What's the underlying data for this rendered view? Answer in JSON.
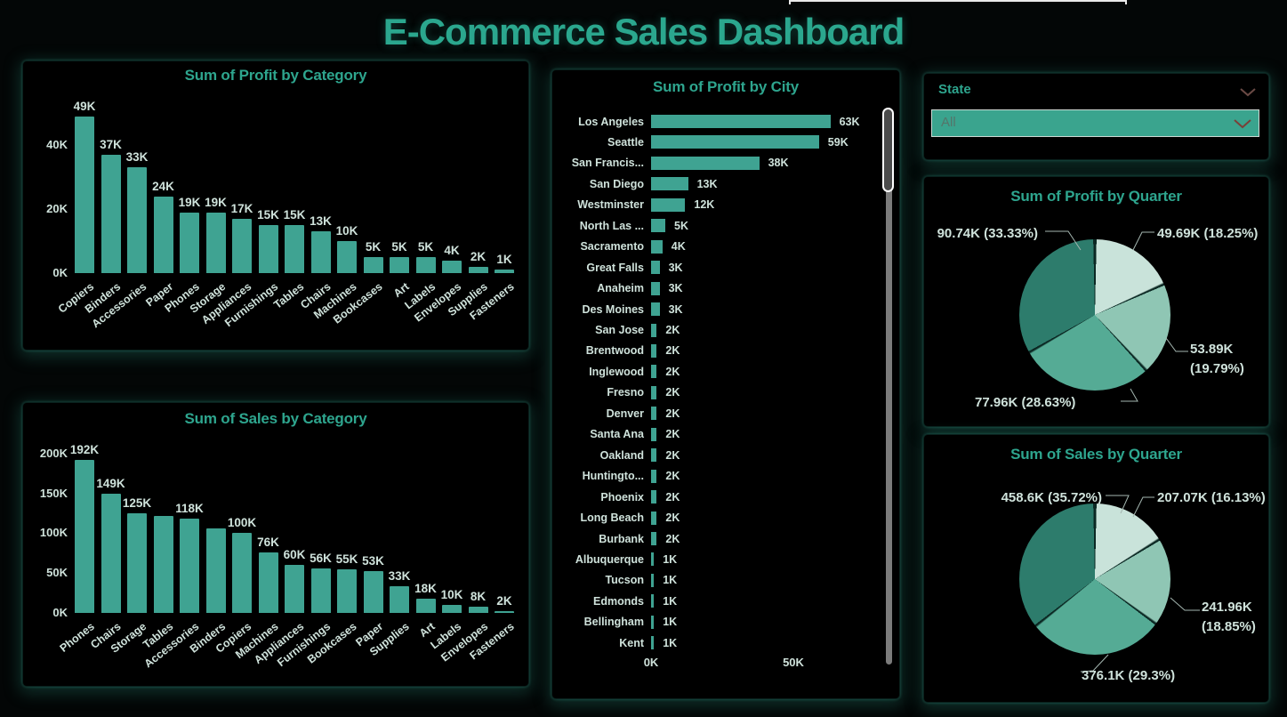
{
  "title": "E-Commerce Sales Dashboard",
  "slicer": {
    "label": "State",
    "value": "All"
  },
  "colors": {
    "accent": "#2EA58E",
    "bar": "#3FA392",
    "label_text": "#CFE2DB",
    "pie_dark": "#2D7C6C",
    "pie_medium": "#55AB95",
    "pie_light": "#8FC6B4",
    "pie_lightest": "#C9E3DA",
    "slice_separator": "#0B2823",
    "slicer_fill": "#3AA48E"
  },
  "chart_data": [
    {
      "id": "profit_by_category",
      "type": "bar",
      "title": "Sum of Profit by Category",
      "unit": "K",
      "ylabel": "Sum of Profit",
      "yticks": [
        {
          "label": "0K",
          "value": 0
        },
        {
          "label": "20K",
          "value": 20
        },
        {
          "label": "40K",
          "value": 40
        }
      ],
      "categories": [
        "Copiers",
        "Binders",
        "Accessories",
        "Paper",
        "Phones",
        "Storage",
        "Appliances",
        "Furnishings",
        "Tables",
        "Chairs",
        "Machines",
        "Bookcases",
        "Art",
        "Labels",
        "Envelopes",
        "Supplies",
        "Fasteners"
      ],
      "values": [
        49,
        37,
        33,
        24,
        19,
        19,
        17,
        15,
        15,
        13,
        10,
        5,
        5,
        5,
        4,
        2,
        1
      ],
      "labels": [
        "49K",
        "37K",
        "33K",
        "24K",
        "19K",
        "19K",
        "17K",
        "15K",
        "15K",
        "13K",
        "10K",
        "5K",
        "5K",
        "5K",
        "4K",
        "2K",
        "1K"
      ]
    },
    {
      "id": "sales_by_category",
      "type": "bar",
      "title": "Sum of Sales by Category",
      "unit": "K",
      "ylabel": "Sum of Sales",
      "yticks": [
        {
          "label": "0K",
          "value": 0
        },
        {
          "label": "50K",
          "value": 50
        },
        {
          "label": "100K",
          "value": 100
        },
        {
          "label": "150K",
          "value": 150
        },
        {
          "label": "200K",
          "value": 200
        }
      ],
      "categories": [
        "Phones",
        "Chairs",
        "Storage",
        "Tables",
        "Accessories",
        "Binders",
        "Copiers",
        "Machines",
        "Appliances",
        "Furnishings",
        "Bookcases",
        "Paper",
        "Supplies",
        "Art",
        "Labels",
        "Envelopes",
        "Fasteners"
      ],
      "values": [
        192,
        149,
        125,
        122,
        118,
        106,
        100,
        76,
        60,
        56,
        55,
        53,
        33,
        18,
        10,
        8,
        2
      ],
      "labels": [
        "192K",
        "149K",
        "125K",
        null,
        "118K",
        null,
        "100K",
        "76K",
        "60K",
        "56K",
        "55K",
        "53K",
        "33K",
        "18K",
        "10K",
        "8K",
        "2K"
      ]
    },
    {
      "id": "profit_by_city",
      "type": "barh",
      "title": "Sum of Profit by City",
      "unit": "K",
      "xticks": [
        {
          "label": "0K",
          "value": 0
        },
        {
          "label": "50K",
          "value": 50
        }
      ],
      "rows": [
        {
          "city": "Los Angeles",
          "value": 63,
          "label": "63K"
        },
        {
          "city": "Seattle",
          "value": 59,
          "label": "59K"
        },
        {
          "city": "San Francis...",
          "value": 38,
          "label": "38K"
        },
        {
          "city": "San Diego",
          "value": 13,
          "label": "13K"
        },
        {
          "city": "Westminster",
          "value": 12,
          "label": "12K"
        },
        {
          "city": "North Las ...",
          "value": 5,
          "label": "5K"
        },
        {
          "city": "Sacramento",
          "value": 4,
          "label": "4K"
        },
        {
          "city": "Great Falls",
          "value": 3,
          "label": "3K"
        },
        {
          "city": "Anaheim",
          "value": 3,
          "label": "3K"
        },
        {
          "city": "Des Moines",
          "value": 3,
          "label": "3K"
        },
        {
          "city": "San Jose",
          "value": 2,
          "label": "2K"
        },
        {
          "city": "Brentwood",
          "value": 2,
          "label": "2K"
        },
        {
          "city": "Inglewood",
          "value": 2,
          "label": "2K"
        },
        {
          "city": "Fresno",
          "value": 2,
          "label": "2K"
        },
        {
          "city": "Denver",
          "value": 2,
          "label": "2K"
        },
        {
          "city": "Santa Ana",
          "value": 2,
          "label": "2K"
        },
        {
          "city": "Oakland",
          "value": 2,
          "label": "2K"
        },
        {
          "city": "Huntingto...",
          "value": 2,
          "label": "2K"
        },
        {
          "city": "Phoenix",
          "value": 2,
          "label": "2K"
        },
        {
          "city": "Long Beach",
          "value": 2,
          "label": "2K"
        },
        {
          "city": "Burbank",
          "value": 2,
          "label": "2K"
        },
        {
          "city": "Albuquerque",
          "value": 1,
          "label": "1K"
        },
        {
          "city": "Tucson",
          "value": 1,
          "label": "1K"
        },
        {
          "city": "Edmonds",
          "value": 1,
          "label": "1K"
        },
        {
          "city": "Bellingham",
          "value": 1,
          "label": "1K"
        },
        {
          "city": "Kent",
          "value": 1,
          "label": "1K"
        }
      ]
    },
    {
      "id": "profit_by_quarter",
      "type": "pie",
      "title": "Sum of Profit by Quarter",
      "slices": [
        {
          "value": 49.69,
          "pct": 18.25,
          "color": "#C9E3DA",
          "pos": "top-right",
          "label_lines": [
            "49.69K (18.25%)"
          ]
        },
        {
          "value": 53.89,
          "pct": 19.79,
          "color": "#8FC6B4",
          "pos": "right",
          "label_lines": [
            "53.89K",
            "(19.79%)"
          ]
        },
        {
          "value": 77.96,
          "pct": 28.63,
          "color": "#55AB95",
          "pos": "bottom",
          "label_lines": [
            "77.96K (28.63%)"
          ]
        },
        {
          "value": 90.74,
          "pct": 33.33,
          "color": "#2D7C6C",
          "pos": "top-left",
          "label_lines": [
            "90.74K (33.33%)"
          ]
        }
      ]
    },
    {
      "id": "sales_by_quarter",
      "type": "pie",
      "title": "Sum of Sales by Quarter",
      "slices": [
        {
          "value": 207.07,
          "pct": 16.13,
          "color": "#C9E3DA",
          "pos": "top-right",
          "label_lines": [
            "207.07K (16.13%)"
          ]
        },
        {
          "value": 241.96,
          "pct": 18.85,
          "color": "#8FC6B4",
          "pos": "right",
          "label_lines": [
            "241.96K",
            "(18.85%)"
          ]
        },
        {
          "value": 376.1,
          "pct": 29.3,
          "color": "#55AB95",
          "pos": "bottom",
          "label_lines": [
            "376.1K (29.3%)"
          ]
        },
        {
          "value": 458.6,
          "pct": 35.72,
          "color": "#2D7C6C",
          "pos": "top-left",
          "label_lines": [
            "458.6K (35.72%)"
          ]
        }
      ]
    }
  ]
}
